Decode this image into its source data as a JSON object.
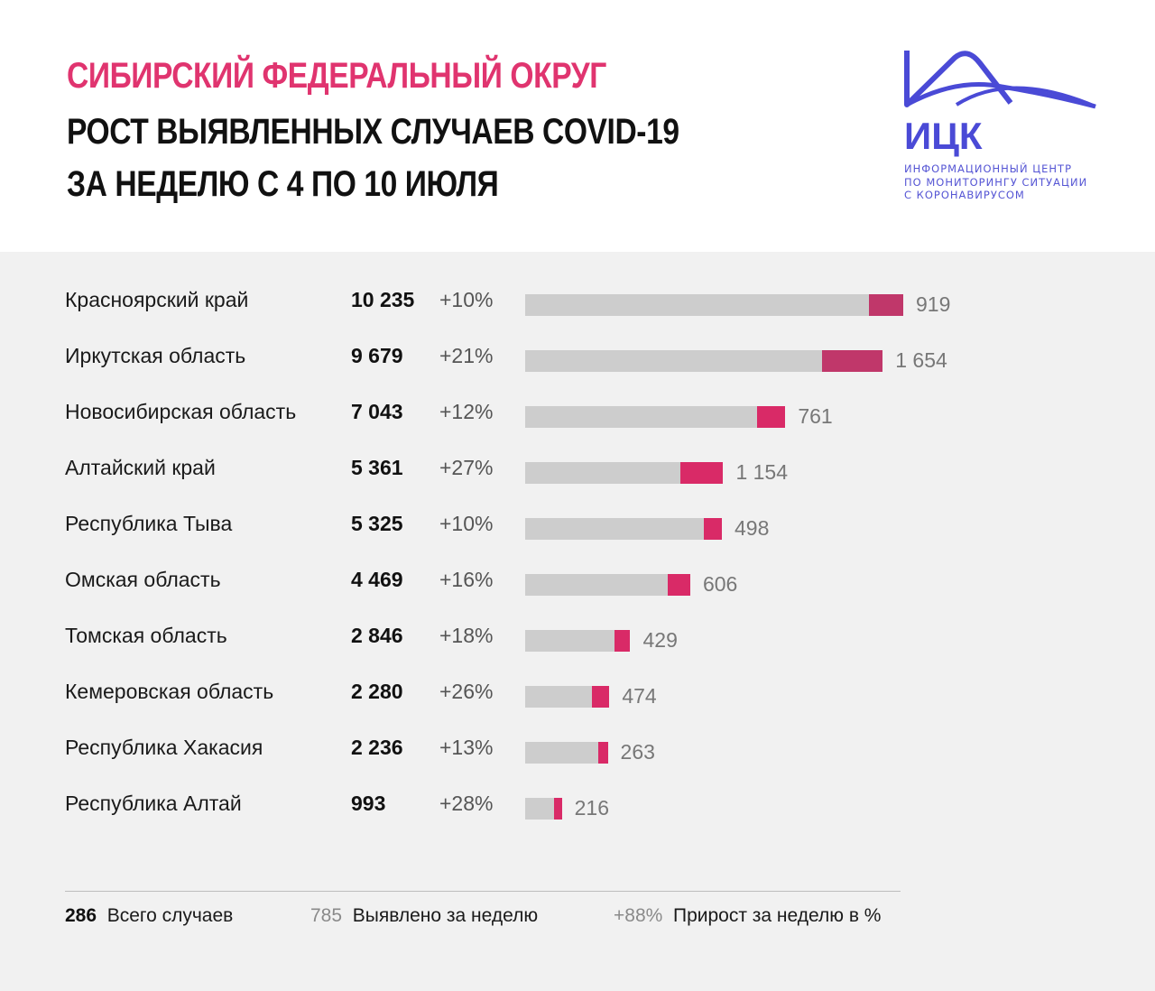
{
  "header": {
    "title_region": "СИБИРСКИЙ ФЕДЕРАЛЬНЫЙ ОКРУГ",
    "title_line2": "РОСТ ВЫЯВЛЕННЫХ СЛУЧАЕВ COVID-19",
    "title_line3": "ЗА НЕДЕЛЮ С 4 ПО 10 ИЮЛЯ"
  },
  "logo": {
    "abbr": "ИЦК",
    "line1": "ИНФОРМАЦИОННЫЙ ЦЕНТР",
    "line2": "ПО МОНИТОРИНГУ СИТУАЦИИ",
    "line3": "С КОРОНАВИРУСОМ",
    "color": "#4a4ad6"
  },
  "colors": {
    "bar_base": "#cdcdcd",
    "bar_new_dark": "#c0376a",
    "bar_new_bright": "#d92a67",
    "title_accent": "#e0346f"
  },
  "chart_data": {
    "type": "bar",
    "orientation": "horizontal",
    "stacked": true,
    "categories": [
      "Красноярский край",
      "Иркутская область",
      "Новосибирская область",
      "Алтайский край",
      "Республика Тыва",
      "Омская область",
      "Томская область",
      "Кемеровская область",
      "Республика Хакасия",
      "Республика Алтай"
    ],
    "totals": [
      10235,
      9679,
      7043,
      5361,
      5325,
      4469,
      2846,
      2280,
      2236,
      993
    ],
    "totals_labels": [
      "10 235",
      "9 679",
      "7 043",
      "5 361",
      "5 325",
      "4 469",
      "2 846",
      "2 280",
      "2 236",
      "993"
    ],
    "growth_pct_labels": [
      "+10%",
      "+21%",
      "+12%",
      "+27%",
      "+10%",
      "+16%",
      "+18%",
      "+26%",
      "+13%",
      "+28%"
    ],
    "weekly_new": [
      919,
      1654,
      761,
      1154,
      498,
      606,
      429,
      474,
      263,
      216
    ],
    "weekly_new_labels": [
      "919",
      "1 654",
      "761",
      "1 154",
      "498",
      "606",
      "429",
      "474",
      "263",
      "216"
    ],
    "xlim": [
      0,
      10235
    ],
    "grid": false
  },
  "legend": {
    "total_value": "286",
    "total_label": "Всего случаев",
    "week_value": "785",
    "week_label": "Выявлено за неделю",
    "growth_value": "+88%",
    "growth_label": "Прирост за неделю в %"
  }
}
